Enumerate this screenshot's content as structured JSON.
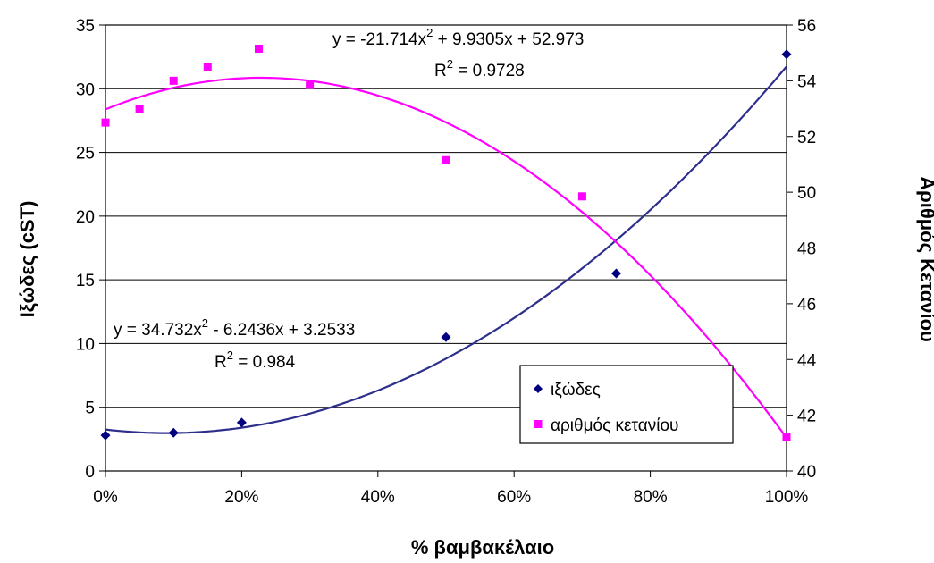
{
  "chart_data": {
    "type": "scatter",
    "xlabel": "% βαμβακέλαιο",
    "ylabel": "Ιξώδες (cST)",
    "y2label": "Αριθμός Κετανίου",
    "xlim": [
      0,
      1
    ],
    "ylim": [
      0,
      35
    ],
    "y2lim": [
      40,
      56
    ],
    "x_ticks": [
      {
        "value": 0,
        "label": "0%"
      },
      {
        "value": 0.2,
        "label": "20%"
      },
      {
        "value": 0.4,
        "label": "40%"
      },
      {
        "value": 0.6,
        "label": "60%"
      },
      {
        "value": 0.8,
        "label": "80%"
      },
      {
        "value": 1.0,
        "label": "100%"
      }
    ],
    "y_ticks": [
      0,
      5,
      10,
      15,
      20,
      25,
      30,
      35
    ],
    "y2_ticks": [
      40,
      42,
      44,
      46,
      48,
      50,
      52,
      54,
      56
    ],
    "grid": "horizontal",
    "legend_position": "bottom-right",
    "series": [
      {
        "name": "ιξώδες",
        "axis": "left",
        "marker": "diamond",
        "color": "#000080",
        "points": [
          [
            0,
            2.8
          ],
          [
            0.1,
            3.0
          ],
          [
            0.2,
            3.8
          ],
          [
            0.5,
            10.5
          ],
          [
            0.75,
            15.5
          ],
          [
            1.0,
            32.7
          ]
        ],
        "trendline": {
          "type": "polynomial",
          "coefficients": [
            34.732,
            -6.2436,
            3.2533
          ],
          "color": "#2e2e8c",
          "equation_text": "y = 34.732x",
          "equation_rest": " - 6.2436x + 3.2533",
          "r2_text": "R",
          "r2_value": " = 0.984",
          "superscript": "2"
        }
      },
      {
        "name": "αριθμός κετανίου",
        "axis": "right",
        "marker": "square",
        "color": "#ff00ff",
        "points": [
          [
            0,
            52.5
          ],
          [
            0.05,
            53.0
          ],
          [
            0.1,
            54.0
          ],
          [
            0.15,
            54.5
          ],
          [
            0.225,
            55.15
          ],
          [
            0.3,
            53.85
          ],
          [
            0.5,
            51.15
          ],
          [
            0.7,
            49.85
          ],
          [
            1.0,
            41.2
          ]
        ],
        "trendline": {
          "type": "polynomial",
          "coefficients": [
            -21.714,
            9.9305,
            52.973
          ],
          "color": "#ff00ff",
          "equation_text": "y = -21.714x",
          "equation_rest": " + 9.9305x + 52.973",
          "r2_text": "R",
          "r2_value": " = 0.9728",
          "superscript": "2"
        }
      }
    ]
  }
}
